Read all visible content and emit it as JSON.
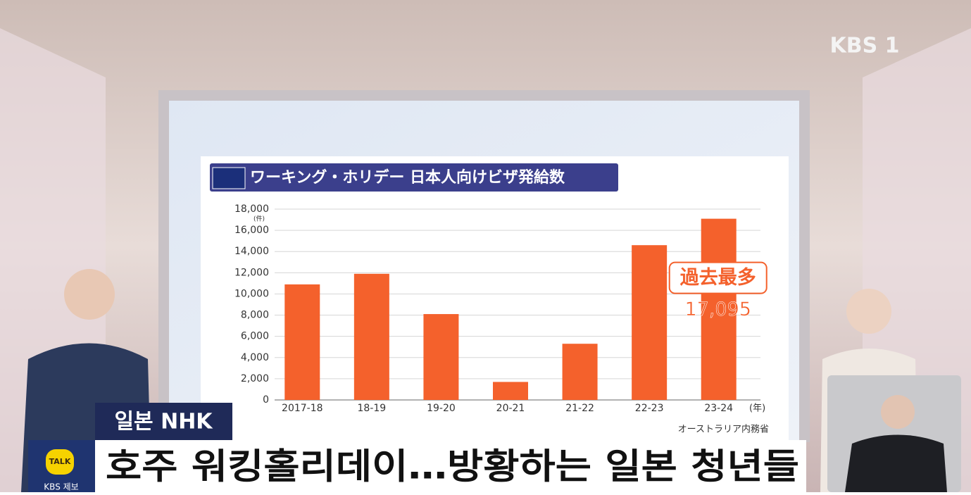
{
  "chart_data": {
    "type": "bar",
    "title": "ワーキング・ホリデー 日本人向けビザ発給数",
    "categories": [
      "2017-18",
      "18-19",
      "19-20",
      "20-21",
      "21-22",
      "22-23",
      "23-24"
    ],
    "values": [
      10900,
      11900,
      8100,
      1700,
      5300,
      14600,
      17095
    ],
    "value_labels": [
      null,
      null,
      null,
      null,
      null,
      null,
      "17,095"
    ],
    "annotation": "過去最多",
    "y_unit": "(件)",
    "x_unit": "(年)",
    "source": "オーストラリア内務省",
    "color": "#f4612c",
    "ylim": [
      0,
      18000
    ],
    "yticks": [
      0,
      {
        "value": 2000,
        "label": "2,000"
      },
      {
        "value": 4000,
        "label": "4,000"
      },
      {
        "value": 6000,
        "label": "6,000"
      },
      {
        "value": 8000,
        "label": "8,000"
      },
      {
        "value": 10000,
        "label": "10,000"
      },
      {
        "value": 12000,
        "label": "12,000"
      },
      {
        "value": 14000,
        "label": "14,000"
      },
      {
        "value": 16000,
        "label": "16,000"
      },
      {
        "value": 18000,
        "label": "18,000"
      }
    ],
    "grid": true
  },
  "broadcast": {
    "logo": "KBS 1",
    "tag": "일본 NHK",
    "headline": "호주 워킹홀리데이…방황하는 일본 청년들",
    "talk": "TALK",
    "report": "KBS 제보"
  }
}
